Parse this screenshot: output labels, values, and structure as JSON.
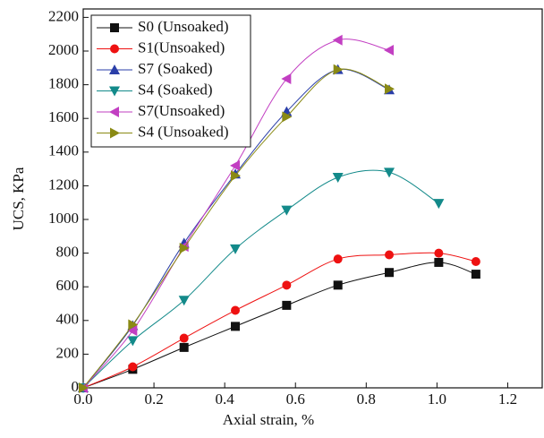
{
  "chart_data": {
    "type": "line",
    "x_label": "Axial strain, %",
    "y_label": "UCS, KPa",
    "xlim": [
      0,
      1.3
    ],
    "ylim": [
      0,
      2250
    ],
    "xticks": [
      {
        "value": 0,
        "label": "0.0"
      },
      0.2,
      0.4,
      0.6,
      0.8,
      {
        "value": 1,
        "label": "1.0"
      },
      1.2
    ],
    "yticks": [
      0,
      200,
      400,
      600,
      800,
      1000,
      1200,
      1400,
      1600,
      1800,
      2000,
      2200
    ],
    "legend": "upper-left",
    "series": [
      {
        "name": "S0 (Unsoaked)",
        "color": "#111111",
        "marker": "square",
        "x": [
          0,
          0.14,
          0.285,
          0.43,
          0.575,
          0.72,
          0.865,
          1.005,
          1.11
        ],
        "values": [
          0,
          110,
          240,
          365,
          490,
          610,
          685,
          745,
          675
        ]
      },
      {
        "name": "S1(Unsoaked)",
        "color": "#ee1111",
        "marker": "circle",
        "x": [
          0,
          0.14,
          0.285,
          0.43,
          0.575,
          0.72,
          0.865,
          1.005,
          1.11
        ],
        "values": [
          0,
          125,
          295,
          460,
          610,
          765,
          790,
          800,
          750
        ]
      },
      {
        "name": "S7 (Soaked)",
        "color": "#2a3ea8",
        "marker": "up",
        "x": [
          0,
          0.14,
          0.285,
          0.43,
          0.575,
          0.72,
          0.865
        ],
        "values": [
          0,
          370,
          860,
          1270,
          1640,
          1890,
          1770
        ]
      },
      {
        "name": "S4 (Soaked)",
        "color": "#138a8a",
        "marker": "down",
        "x": [
          0,
          0.14,
          0.285,
          0.43,
          0.575,
          0.72,
          0.865,
          1.005
        ],
        "values": [
          0,
          280,
          520,
          825,
          1055,
          1250,
          1280,
          1095
        ]
      },
      {
        "name": "S7(Unsoaked)",
        "color": "#c23fc2",
        "marker": "left",
        "x": [
          0,
          0.14,
          0.285,
          0.43,
          0.575,
          0.72,
          0.865
        ],
        "values": [
          0,
          340,
          840,
          1320,
          1835,
          2065,
          2005
        ]
      },
      {
        "name": "S4 (Unsoaked)",
        "color": "#8a8a14",
        "marker": "right",
        "x": [
          0,
          0.14,
          0.285,
          0.43,
          0.575,
          0.72,
          0.865
        ],
        "values": [
          0,
          375,
          830,
          1260,
          1610,
          1890,
          1775
        ]
      }
    ]
  }
}
